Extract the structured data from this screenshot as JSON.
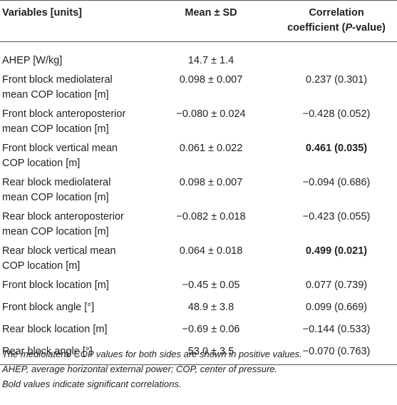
{
  "header": {
    "col1": "Variables [units]",
    "col2": "Mean ± SD",
    "col3_line1": "Correlation",
    "col3_line2_pre": "coefficient (",
    "col3_line2_italic": "P",
    "col3_line2_post": "-value)"
  },
  "rows": [
    {
      "variable": "AHEP [W/kg]",
      "line2": "",
      "mean": "14.7 ± 1.4",
      "corr": "",
      "significant": false
    },
    {
      "variable": "Front block mediolateral",
      "line2": "mean COP location [m]",
      "mean": "0.098 ± 0.007",
      "corr": "0.237 (0.301)",
      "significant": false
    },
    {
      "variable": "Front block anteroposterior",
      "line2": "mean COP location [m]",
      "mean": "−0.080 ± 0.024",
      "corr": "−0.428 (0.052)",
      "significant": false
    },
    {
      "variable": "Front block vertical mean",
      "line2": "COP location [m]",
      "mean": "0.061 ± 0.022",
      "corr": "0.461 (0.035)",
      "significant": true
    },
    {
      "variable": "Rear block mediolateral",
      "line2": "mean COP location [m]",
      "mean": "0.098 ± 0.007",
      "corr": "−0.094 (0.686)",
      "significant": false
    },
    {
      "variable": "Rear block anteroposterior",
      "line2": "mean COP location [m]",
      "mean": "−0.082 ± 0.018",
      "corr": "−0.423 (0.055)",
      "significant": false
    },
    {
      "variable": "Rear block vertical mean",
      "line2": "COP location [m]",
      "mean": "0.064 ± 0.018",
      "corr": "0.499 (0.021)",
      "significant": true
    },
    {
      "variable": "Front block location [m]",
      "line2": "",
      "mean": "−0.45 ± 0.05",
      "corr": "0.077 (0.739)",
      "significant": false
    },
    {
      "variable": "Front block angle [°]",
      "line2": "",
      "mean": "48.9 ± 3.8",
      "corr": "0.099 (0.669)",
      "significant": false
    },
    {
      "variable": "Rear block location [m]",
      "line2": "",
      "mean": "−0.69 ± 0.06",
      "corr": "−0.144 (0.533)",
      "significant": false
    },
    {
      "variable": "Rear block angle [°]",
      "line2": "",
      "mean": "53.0 ± 3.5",
      "corr": "−0.070 (0.763)",
      "significant": false
    }
  ],
  "footnotes": [
    "The mediolateral COP values for both sides are shown in positive values.",
    "AHEP, average horizontal external power; COP, center of pressure.",
    "Bold values indicate significant correlations."
  ]
}
